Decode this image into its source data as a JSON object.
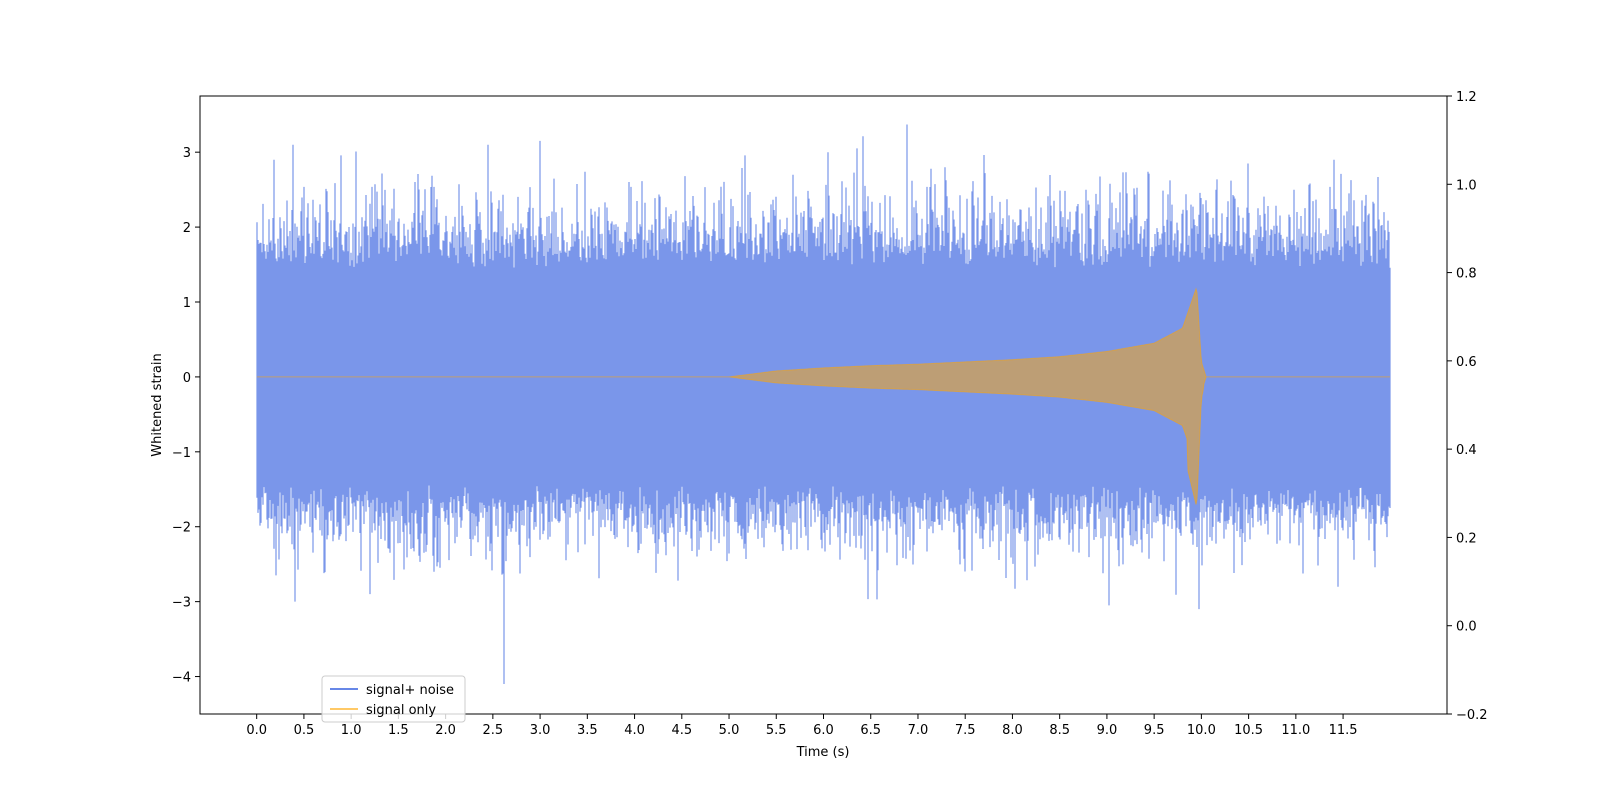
{
  "chart_data": {
    "type": "line",
    "xlabel": "Time (s)",
    "ylabel": "Whitened strain",
    "xlim": [
      -0.6,
      12.6
    ],
    "ylim": [
      -4.5,
      3.75
    ],
    "y2lim": [
      -0.2,
      1.2
    ],
    "x_ticks": [
      "0.0",
      "0.5",
      "1.0",
      "1.5",
      "2.0",
      "2.5",
      "3.0",
      "3.5",
      "4.0",
      "4.5",
      "5.0",
      "5.5",
      "6.0",
      "6.5",
      "7.0",
      "7.5",
      "8.0",
      "8.5",
      "9.0",
      "9.5",
      "10.0",
      "10.5",
      "11.0",
      "11.5"
    ],
    "y_ticks": [
      "3",
      "2",
      "1",
      "0",
      "−1",
      "−2",
      "−3",
      "−4"
    ],
    "y2_ticks": [
      "1.2",
      "1.0",
      "0.8",
      "0.6",
      "0.4",
      "0.2",
      "0.0",
      "−0.2"
    ],
    "grid": false,
    "legend_position": "lower-left",
    "series": [
      {
        "name": "signal+ noise",
        "color": "#4169e1",
        "alpha": 0.7,
        "x_range": [
          0.0,
          12.0
        ],
        "typical_amplitude": 1.6,
        "notable_peaks": [
          {
            "x": 0.18,
            "y": 2.9
          },
          {
            "x": 0.38,
            "y": 3.1
          },
          {
            "x": 2.45,
            "y": 3.1
          },
          {
            "x": 3.0,
            "y": 3.15
          },
          {
            "x": 6.35,
            "y": 3.05
          },
          {
            "x": 6.88,
            "y": 3.37
          },
          {
            "x": 6.05,
            "y": 3.0
          },
          {
            "x": 11.4,
            "y": 2.9
          }
        ],
        "notable_troughs": [
          {
            "x": 0.2,
            "y": -2.65
          },
          {
            "x": 0.41,
            "y": -3.0
          },
          {
            "x": 1.2,
            "y": -2.9
          },
          {
            "x": 2.62,
            "y": -4.1
          },
          {
            "x": 6.57,
            "y": -2.97
          },
          {
            "x": 9.02,
            "y": -3.05
          },
          {
            "x": 9.98,
            "y": -3.1
          },
          {
            "x": 11.45,
            "y": -2.8
          }
        ]
      },
      {
        "name": "signal only",
        "color": "#ffa500",
        "alpha": 0.5,
        "x_range": [
          0.0,
          12.0
        ],
        "envelope": [
          {
            "x": 0.0,
            "y": 0.0
          },
          {
            "x": 5.0,
            "y": 0.0
          },
          {
            "x": 5.5,
            "y": 0.08
          },
          {
            "x": 6.0,
            "y": 0.12
          },
          {
            "x": 6.5,
            "y": 0.15
          },
          {
            "x": 7.0,
            "y": 0.17
          },
          {
            "x": 7.5,
            "y": 0.2
          },
          {
            "x": 8.0,
            "y": 0.23
          },
          {
            "x": 8.5,
            "y": 0.27
          },
          {
            "x": 9.0,
            "y": 0.34
          },
          {
            "x": 9.5,
            "y": 0.45
          },
          {
            "x": 9.8,
            "y": 0.65
          },
          {
            "x": 9.95,
            "y": 1.2
          },
          {
            "x": 10.0,
            "y": 0.2
          },
          {
            "x": 10.05,
            "y": 0.0
          },
          {
            "x": 12.0,
            "y": 0.0
          }
        ]
      }
    ]
  }
}
